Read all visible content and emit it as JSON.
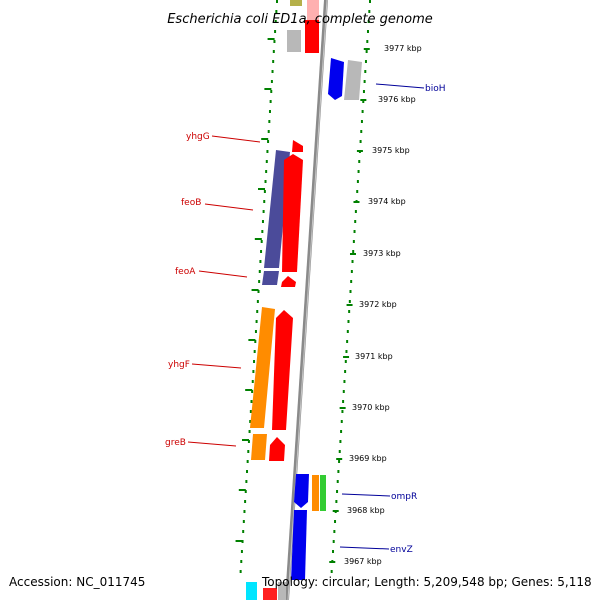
{
  "title": "Escherichia coli ED1a, complete genome",
  "footer": {
    "accession": "Accession: NC_011745",
    "topology": "Topology: circular; Length: 5,209,548 bp; Genes: 5,118"
  },
  "scale_labels": [
    "3977 kbp",
    "3976 kbp",
    "3975 kbp",
    "3974 kbp",
    "3973 kbp",
    "3972 kbp",
    "3971 kbp",
    "3970 kbp",
    "3969 kbp",
    "3968 kbp",
    "3967 kbp"
  ],
  "gene_labels_left": [
    "yhgG",
    "feoB",
    "feoA",
    "yhgF",
    "greB"
  ],
  "gene_labels_right": [
    "bioH",
    "ompR",
    "envZ"
  ],
  "colors": {
    "forward_strand": "#ff0000",
    "reverse_strand": "#0000ff",
    "left_label": "#cc0000",
    "right_label": "#000099",
    "feo_track": "#4b4b9a",
    "yhgF_track": "#ff8c00",
    "grid_dots": "#008000",
    "backbone": "#808080"
  }
}
